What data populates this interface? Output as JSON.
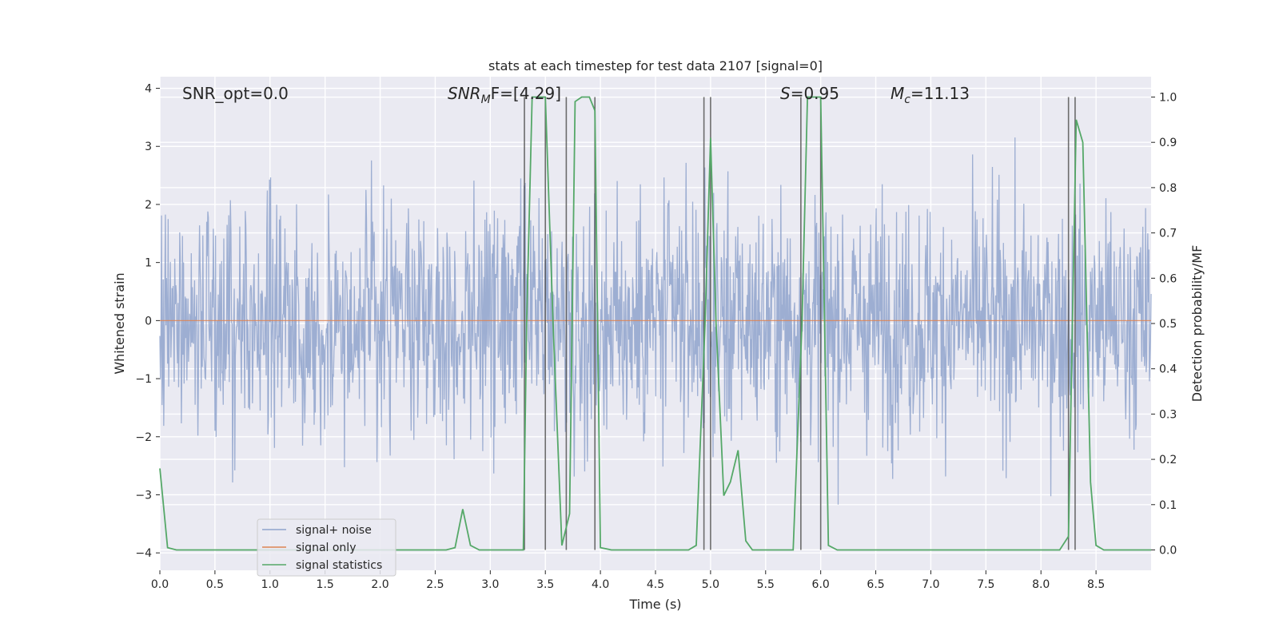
{
  "chart_data": {
    "type": "line",
    "title": "stats at each timestep for test data 2107 [signal=0]",
    "xlabel": "Time (s)",
    "ylabel": "Whitened strain",
    "y2label": "Detection probability/MF",
    "xlim": [
      0,
      9
    ],
    "ylim": [
      -4.3,
      4.2
    ],
    "y2lim": [
      -0.045,
      1.045
    ],
    "x_ticks": [
      0.0,
      0.5,
      1.0,
      1.5,
      2.0,
      2.5,
      3.0,
      3.5,
      4.0,
      4.5,
      5.0,
      5.5,
      6.0,
      6.5,
      7.0,
      7.5,
      8.0,
      8.5
    ],
    "x_tick_labels": [
      "0.0",
      "0.5",
      "1.0",
      "1.5",
      "2.0",
      "2.5",
      "3.0",
      "3.5",
      "4.0",
      "4.5",
      "5.0",
      "5.5",
      "6.0",
      "6.5",
      "7.0",
      "7.5",
      "8.0",
      "8.5"
    ],
    "y_ticks": [
      4,
      3,
      2,
      1,
      0,
      -1,
      -2,
      -3,
      -4
    ],
    "y_tick_labels": [
      "4",
      "3",
      "2",
      "1",
      "0",
      "−1",
      "−2",
      "−3",
      "−4"
    ],
    "y2_ticks": [
      1.0,
      0.9,
      0.8,
      0.7,
      0.6,
      0.5,
      0.4,
      0.3,
      0.2,
      0.1,
      0.0
    ],
    "y2_tick_labels": [
      "1.0",
      "0.9",
      "0.8",
      "0.7",
      "0.6",
      "0.5",
      "0.4",
      "0.3",
      "0.2",
      "0.1",
      "0.0"
    ],
    "grid": true,
    "legend": {
      "placement": "lower-left",
      "entries": [
        {
          "label": "signal+ noise",
          "color": "#8fa3cc"
        },
        {
          "label": "signal only",
          "color": "#dd8452"
        },
        {
          "label": "signal statistics",
          "color": "#55a868"
        }
      ]
    },
    "annotations": [
      "SNR_opt=0.0",
      "SNR",
      "M",
      "F=[4.29]",
      "S",
      "=0.95",
      "M",
      "c",
      "=11.13"
    ],
    "noise": {
      "name": "signal+ noise",
      "color": "#8fa3cc",
      "seed": 2107,
      "n": 1800,
      "sigma": 1.0
    },
    "signal_only": {
      "name": "signal only",
      "color": "#dd8452",
      "value": 0.0
    },
    "statistics": {
      "name": "signal statistics",
      "color": "#55a868",
      "x": [
        0.0,
        0.07,
        0.15,
        2.6,
        2.68,
        2.75,
        2.82,
        2.9,
        3.3,
        3.33,
        3.38,
        3.5,
        3.57,
        3.65,
        3.72,
        3.77,
        3.83,
        3.9,
        3.95,
        4.0,
        4.1,
        4.8,
        4.87,
        4.95,
        5.0,
        5.05,
        5.12,
        5.18,
        5.25,
        5.32,
        5.38,
        5.75,
        5.83,
        5.88,
        5.93,
        6.0,
        6.07,
        6.15,
        8.17,
        8.25,
        8.32,
        8.38,
        8.45,
        8.5,
        8.57,
        9.0
      ],
      "y": [
        0.18,
        0.005,
        0.0,
        0.0,
        0.005,
        0.09,
        0.01,
        0.0,
        0.0,
        0.5,
        1.0,
        1.0,
        0.5,
        0.01,
        0.08,
        0.99,
        1.0,
        1.0,
        0.97,
        0.005,
        0.0,
        0.0,
        0.01,
        0.5,
        0.91,
        0.5,
        0.12,
        0.15,
        0.22,
        0.02,
        0.0,
        0.0,
        0.5,
        1.0,
        1.0,
        1.0,
        0.01,
        0.0,
        0.0,
        0.03,
        0.95,
        0.9,
        0.15,
        0.01,
        0.0,
        0.0
      ]
    },
    "vlines": [
      3.31,
      3.5,
      3.69,
      3.95,
      4.94,
      5.0,
      5.82,
      6.0,
      8.25,
      8.31
    ]
  }
}
